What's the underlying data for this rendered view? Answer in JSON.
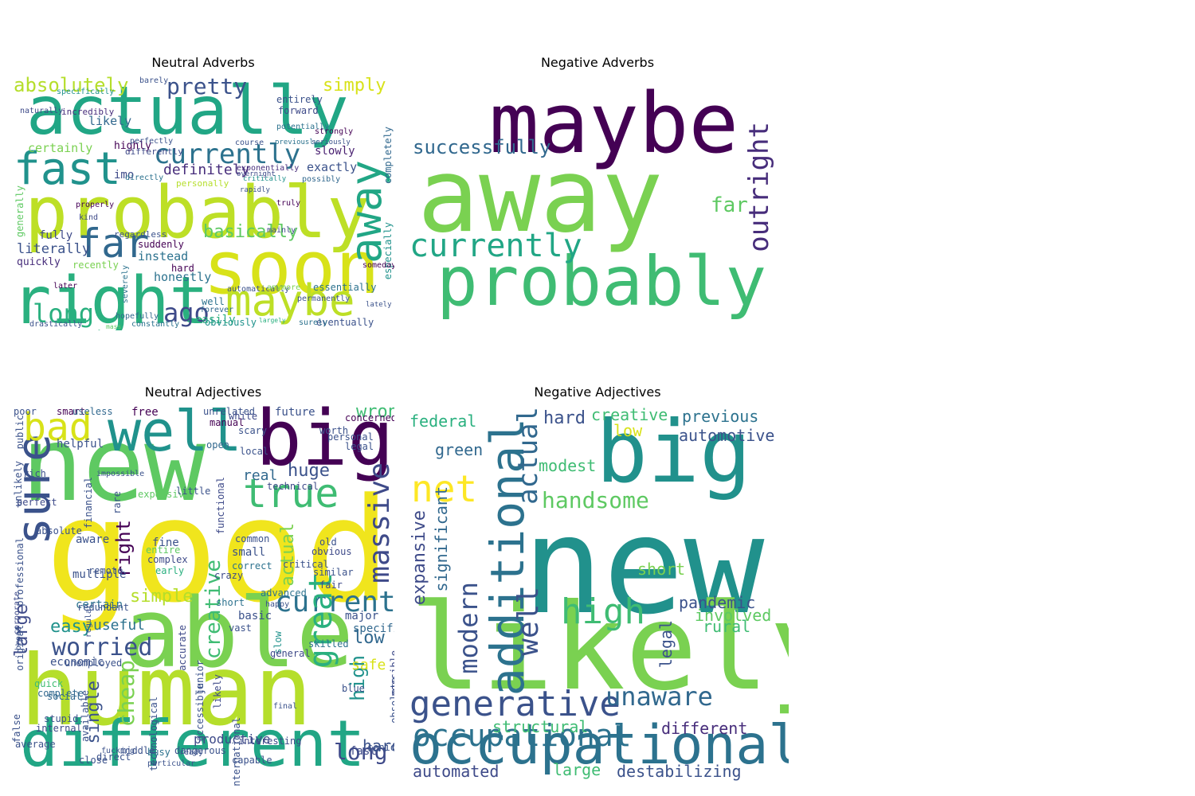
{
  "panels": [
    {
      "title": "Neutral Adverbs",
      "words": [
        {
          "text": "actually",
          "color": "#21a685"
        },
        {
          "text": "probably",
          "color": "#bddf26"
        },
        {
          "text": "soon",
          "color": "#d8e219"
        },
        {
          "text": "right",
          "color": "#2ab07f"
        },
        {
          "text": "fast",
          "color": "#20928c"
        },
        {
          "text": "far",
          "color": "#31688e"
        },
        {
          "text": "maybe",
          "color": "#bddf26"
        },
        {
          "text": "currently",
          "color": "#2c728e"
        },
        {
          "text": "away",
          "color": "#21a685"
        },
        {
          "text": "absolutely",
          "color": "#b5de2b"
        },
        {
          "text": "pretty",
          "color": "#3b528b"
        },
        {
          "text": "simply",
          "color": "#d8e219"
        },
        {
          "text": "long",
          "color": "#2ab07f"
        },
        {
          "text": "ago",
          "color": "#3e4a89"
        },
        {
          "text": "basically",
          "color": "#5ec962"
        },
        {
          "text": "definitely",
          "color": "#472d7b"
        },
        {
          "text": "literally",
          "color": "#3b528b"
        },
        {
          "text": "certainly",
          "color": "#7ad151"
        },
        {
          "text": "likely",
          "color": "#31688e"
        },
        {
          "text": "instead",
          "color": "#2c728e"
        },
        {
          "text": "exactly",
          "color": "#3b528b"
        },
        {
          "text": "fully",
          "color": "#3e4a89"
        },
        {
          "text": "quickly",
          "color": "#472d7b"
        },
        {
          "text": "highly",
          "color": "#440154"
        },
        {
          "text": "slowly",
          "color": "#481f70"
        },
        {
          "text": "suddenly",
          "color": "#440154"
        },
        {
          "text": "honestly",
          "color": "#2c728e"
        },
        {
          "text": "easily",
          "color": "#2ab07f"
        },
        {
          "text": "obviously",
          "color": "#20928c"
        },
        {
          "text": "eventually",
          "color": "#3b528b"
        },
        {
          "text": "essentially",
          "color": "#2c728e"
        },
        {
          "text": "completely",
          "color": "#31688e"
        },
        {
          "text": "especially",
          "color": "#20928c"
        },
        {
          "text": "hard",
          "color": "#440154"
        },
        {
          "text": "imo",
          "color": "#3e4a89"
        },
        {
          "text": "generally",
          "color": "#5ec962"
        },
        {
          "text": "recently",
          "color": "#7ad151"
        },
        {
          "text": "personally",
          "color": "#b5de2b"
        },
        {
          "text": "regardless",
          "color": "#3b528b"
        },
        {
          "text": "well",
          "color": "#2c728e"
        },
        {
          "text": "later",
          "color": "#440154"
        },
        {
          "text": "forward",
          "color": "#3e4a89"
        },
        {
          "text": "entirely",
          "color": "#3b528b"
        },
        {
          "text": "potentially",
          "color": "#2c728e"
        },
        {
          "text": "incredibly",
          "color": "#472d7b"
        },
        {
          "text": "naturally",
          "color": "#3e4a89"
        },
        {
          "text": "specifically",
          "color": "#20928c"
        },
        {
          "text": "barely",
          "color": "#3b528b"
        },
        {
          "text": "hopefully",
          "color": "#31688e"
        },
        {
          "text": "mass",
          "color": "#5ec962"
        },
        {
          "text": "constantly",
          "color": "#2c728e"
        },
        {
          "text": "drastically",
          "color": "#3b528b"
        },
        {
          "text": "largely",
          "color": "#2ab07f"
        },
        {
          "text": "differently",
          "color": "#3e4a89"
        },
        {
          "text": "perfectly",
          "color": "#3b528b"
        },
        {
          "text": "directly",
          "color": "#2c728e"
        },
        {
          "text": "course",
          "color": "#3b528b"
        },
        {
          "text": "mainly",
          "color": "#3e4a89"
        },
        {
          "text": "truly",
          "color": "#440154"
        },
        {
          "text": "rapidly",
          "color": "#3b528b"
        },
        {
          "text": "critically",
          "color": "#20928c"
        },
        {
          "text": "overnight",
          "color": "#3e4a89"
        },
        {
          "text": "possibly",
          "color": "#31688e"
        },
        {
          "text": "seriously",
          "color": "#3b528b"
        },
        {
          "text": "previously",
          "color": "#2c728e"
        },
        {
          "text": "strongly",
          "color": "#440154"
        },
        {
          "text": "exponentially",
          "color": "#472d7b"
        },
        {
          "text": "properly",
          "color": "#440154"
        },
        {
          "text": "kind",
          "color": "#3e4a89"
        },
        {
          "text": "automatically",
          "color": "#3b528b"
        },
        {
          "text": "severely",
          "color": "#2c728e"
        },
        {
          "text": "lately",
          "color": "#3b528b"
        },
        {
          "text": "surely",
          "color": "#2c728e"
        },
        {
          "text": "forever",
          "color": "#31688e"
        },
        {
          "text": "anymore",
          "color": "#7ad151"
        },
        {
          "text": "permanently",
          "color": "#3b528b"
        },
        {
          "text": "someday",
          "color": "#440154"
        }
      ]
    },
    {
      "title": "Negative Adverbs",
      "words": [
        {
          "text": "away",
          "color": "#7ad151"
        },
        {
          "text": "maybe",
          "color": "#440154"
        },
        {
          "text": "probably",
          "color": "#3fbc73"
        },
        {
          "text": "currently",
          "color": "#21a685"
        },
        {
          "text": "successfully",
          "color": "#31688e"
        },
        {
          "text": "outright",
          "color": "#472d7b"
        },
        {
          "text": "far",
          "color": "#5ec962"
        }
      ]
    },
    {
      "title": "Neutral Adjectives",
      "words": [
        {
          "text": "good",
          "color": "#f0e51d"
        },
        {
          "text": "new",
          "color": "#5ec962"
        },
        {
          "text": "human",
          "color": "#b5de2b"
        },
        {
          "text": "able",
          "color": "#7ad151"
        },
        {
          "text": "different",
          "color": "#21a685"
        },
        {
          "text": "big",
          "color": "#440154"
        },
        {
          "text": "well",
          "color": "#20928c"
        },
        {
          "text": "sure",
          "color": "#3b528b"
        },
        {
          "text": "bad",
          "color": "#d8e219"
        },
        {
          "text": "true",
          "color": "#3fbc73"
        },
        {
          "text": "current",
          "color": "#2c728e"
        },
        {
          "text": "massive",
          "color": "#3e4a89"
        },
        {
          "text": "great",
          "color": "#2ab07f"
        },
        {
          "text": "worried",
          "color": "#3b528b"
        },
        {
          "text": "long",
          "color": "#3e4a89"
        },
        {
          "text": "easy",
          "color": "#20928c"
        },
        {
          "text": "huge",
          "color": "#3b528b"
        },
        {
          "text": "cheap",
          "color": "#7ad151"
        },
        {
          "text": "creative",
          "color": "#3fbc73"
        },
        {
          "text": "large",
          "color": "#3e4a89"
        },
        {
          "text": "simple",
          "color": "#b5de2b"
        },
        {
          "text": "high",
          "color": "#20928c"
        },
        {
          "text": "low",
          "color": "#31688e"
        },
        {
          "text": "hard",
          "color": "#3b528b"
        },
        {
          "text": "safe",
          "color": "#d8e219"
        },
        {
          "text": "right",
          "color": "#440154"
        },
        {
          "text": "wrong",
          "color": "#3fbc73"
        },
        {
          "text": "real",
          "color": "#31688e"
        },
        {
          "text": "single",
          "color": "#3b528b"
        },
        {
          "text": "actual",
          "color": "#7ad151"
        },
        {
          "text": "useful",
          "color": "#2c728e"
        },
        {
          "text": "productive",
          "color": "#3e4a89"
        },
        {
          "text": "basic",
          "color": "#3b528b"
        },
        {
          "text": "free",
          "color": "#440154"
        },
        {
          "text": "future",
          "color": "#3b528b"
        },
        {
          "text": "concerned",
          "color": "#440154"
        },
        {
          "text": "expensive",
          "color": "#5ec962"
        },
        {
          "text": "complex",
          "color": "#3e4a89"
        },
        {
          "text": "small",
          "color": "#3b528b"
        },
        {
          "text": "multiple",
          "color": "#3b528b"
        },
        {
          "text": "specific",
          "color": "#31688e"
        },
        {
          "text": "social",
          "color": "#31688e"
        },
        {
          "text": "stupid",
          "color": "#3b528b"
        },
        {
          "text": "certain",
          "color": "#2c728e"
        },
        {
          "text": "economic",
          "color": "#3b528b"
        },
        {
          "text": "interesting",
          "color": "#3e4a89"
        },
        {
          "text": "helpful",
          "color": "#3b528b"
        },
        {
          "text": "major",
          "color": "#3b528b"
        },
        {
          "text": "skilled",
          "color": "#2c728e"
        },
        {
          "text": "slow",
          "color": "#20928c"
        },
        {
          "text": "fast",
          "color": "#3e4a89"
        },
        {
          "text": "fine",
          "color": "#3b528b"
        },
        {
          "text": "aware",
          "color": "#3b528b"
        },
        {
          "text": "smart",
          "color": "#440154"
        },
        {
          "text": "useless",
          "color": "#31688e"
        },
        {
          "text": "open",
          "color": "#31688e"
        },
        {
          "text": "manual",
          "color": "#440154"
        },
        {
          "text": "legal",
          "color": "#3b528b"
        },
        {
          "text": "rich",
          "color": "#3b528b"
        },
        {
          "text": "perfect",
          "color": "#3e4a89"
        },
        {
          "text": "poor",
          "color": "#3b528b"
        },
        {
          "text": "entire",
          "color": "#5ec962"
        },
        {
          "text": "early",
          "color": "#2ab07f"
        },
        {
          "text": "old",
          "color": "#3b528b"
        },
        {
          "text": "obvious",
          "color": "#3e4a89"
        },
        {
          "text": "similar",
          "color": "#3b528b"
        },
        {
          "text": "fair",
          "color": "#3e4a89"
        },
        {
          "text": "correct",
          "color": "#2c728e"
        },
        {
          "text": "common",
          "color": "#3b528b"
        },
        {
          "text": "advanced",
          "color": "#2c728e"
        },
        {
          "text": "happy",
          "color": "#3b528b"
        },
        {
          "text": "short",
          "color": "#2c728e"
        },
        {
          "text": "technical",
          "color": "#3e4a89"
        },
        {
          "text": "complete",
          "color": "#31688e"
        },
        {
          "text": "quick",
          "color": "#3fbc73"
        },
        {
          "text": "internal",
          "color": "#3e4a89"
        },
        {
          "text": "average",
          "color": "#3b528b"
        },
        {
          "text": "close",
          "color": "#3b528b"
        },
        {
          "text": "middle",
          "color": "#3b528b"
        },
        {
          "text": "busy",
          "color": "#2c728e"
        },
        {
          "text": "blue",
          "color": "#3b528b"
        },
        {
          "text": "senior",
          "color": "#3b528b"
        },
        {
          "text": "general",
          "color": "#3e4a89"
        },
        {
          "text": "final",
          "color": "#3b528b"
        },
        {
          "text": "dangerous",
          "color": "#3b528b"
        },
        {
          "text": "likely",
          "color": "#3e4a89"
        },
        {
          "text": "accessible",
          "color": "#3b528b"
        },
        {
          "text": "technological",
          "color": "#3b528b"
        },
        {
          "text": "obsolete",
          "color": "#3b528b"
        },
        {
          "text": "possible",
          "color": "#3e4a89"
        },
        {
          "text": "international",
          "color": "#3b528b"
        },
        {
          "text": "junior",
          "color": "#3b528b"
        },
        {
          "text": "accurate",
          "color": "#3e4a89"
        },
        {
          "text": "available",
          "color": "#3b528b"
        },
        {
          "text": "financial",
          "color": "#3b528b"
        },
        {
          "text": "unlikely",
          "color": "#3b528b"
        },
        {
          "text": "corporate",
          "color": "#3e4a89"
        },
        {
          "text": "absolute",
          "color": "#3b528b"
        },
        {
          "text": "professional",
          "color": "#3b528b"
        },
        {
          "text": "functional",
          "color": "#3e4a89"
        },
        {
          "text": "unrelated",
          "color": "#3b528b"
        },
        {
          "text": "scary",
          "color": "#3b528b"
        },
        {
          "text": "white",
          "color": "#3e4a89"
        },
        {
          "text": "remote",
          "color": "#3b528b"
        },
        {
          "text": "critical",
          "color": "#3b528b"
        },
        {
          "text": "vast",
          "color": "#3b528b"
        },
        {
          "text": "crazy",
          "color": "#3e4a89"
        },
        {
          "text": "little",
          "color": "#3b528b"
        },
        {
          "text": "rare",
          "color": "#3b528b"
        },
        {
          "text": "impossible",
          "color": "#3b528b"
        },
        {
          "text": "unemployed",
          "color": "#3b528b"
        },
        {
          "text": "original",
          "color": "#3b528b"
        },
        {
          "text": "ready",
          "color": "#3b528b"
        },
        {
          "text": "worth",
          "color": "#3b528b"
        },
        {
          "text": "personal",
          "color": "#3b528b"
        },
        {
          "text": "local",
          "color": "#3b528b"
        },
        {
          "text": "capable",
          "color": "#3b528b"
        },
        {
          "text": "public",
          "color": "#3b528b"
        },
        {
          "text": "redundant",
          "color": "#3b528b"
        },
        {
          "text": "regular",
          "color": "#3b528b"
        },
        {
          "text": "false",
          "color": "#3b528b"
        },
        {
          "text": "direct",
          "color": "#3b528b"
        },
        {
          "text": "fucking",
          "color": "#3b528b"
        },
        {
          "text": "particular",
          "color": "#3b528b"
        },
        {
          "text": "broad",
          "color": "#3b528b"
        }
      ]
    },
    {
      "title": "Negative Adjectives",
      "words": [
        {
          "text": "new",
          "color": "#21918c"
        },
        {
          "text": "likely",
          "color": "#7ad151"
        },
        {
          "text": "big",
          "color": "#21918c"
        },
        {
          "text": "occupational",
          "color": "#2c728e"
        },
        {
          "text": "additional",
          "color": "#2c728e"
        },
        {
          "text": "generative",
          "color": "#3b528b"
        },
        {
          "text": "high",
          "color": "#3fbc73"
        },
        {
          "text": "net",
          "color": "#fde725"
        },
        {
          "text": "handsome",
          "color": "#5ec962"
        },
        {
          "text": "actual",
          "color": "#31688e"
        },
        {
          "text": "modern",
          "color": "#3b528b"
        },
        {
          "text": "well",
          "color": "#3b528b"
        },
        {
          "text": "unaware",
          "color": "#31688e"
        },
        {
          "text": "significant",
          "color": "#31688e"
        },
        {
          "text": "expansive",
          "color": "#3e4a89"
        },
        {
          "text": "occupational",
          "color": "#2c728e"
        },
        {
          "text": "structural",
          "color": "#3fbc73"
        },
        {
          "text": "different",
          "color": "#472d7b"
        },
        {
          "text": "destabilizing",
          "color": "#3b528b"
        },
        {
          "text": "automated",
          "color": "#3e4a89"
        },
        {
          "text": "large",
          "color": "#3fbc73"
        },
        {
          "text": "pandemic",
          "color": "#3b528b"
        },
        {
          "text": "involved",
          "color": "#5ec962"
        },
        {
          "text": "rural",
          "color": "#3fbc73"
        },
        {
          "text": "legal",
          "color": "#3b528b"
        },
        {
          "text": "short",
          "color": "#7ad151"
        },
        {
          "text": "modest",
          "color": "#3fbc73"
        },
        {
          "text": "federal",
          "color": "#2ab07f"
        },
        {
          "text": "green",
          "color": "#31688e"
        },
        {
          "text": "hard",
          "color": "#3b528b"
        },
        {
          "text": "creative",
          "color": "#3fbc73"
        },
        {
          "text": "low",
          "color": "#d8e219"
        },
        {
          "text": "previous",
          "color": "#2c728e"
        },
        {
          "text": "automotive",
          "color": "#3b528b"
        }
      ]
    }
  ]
}
